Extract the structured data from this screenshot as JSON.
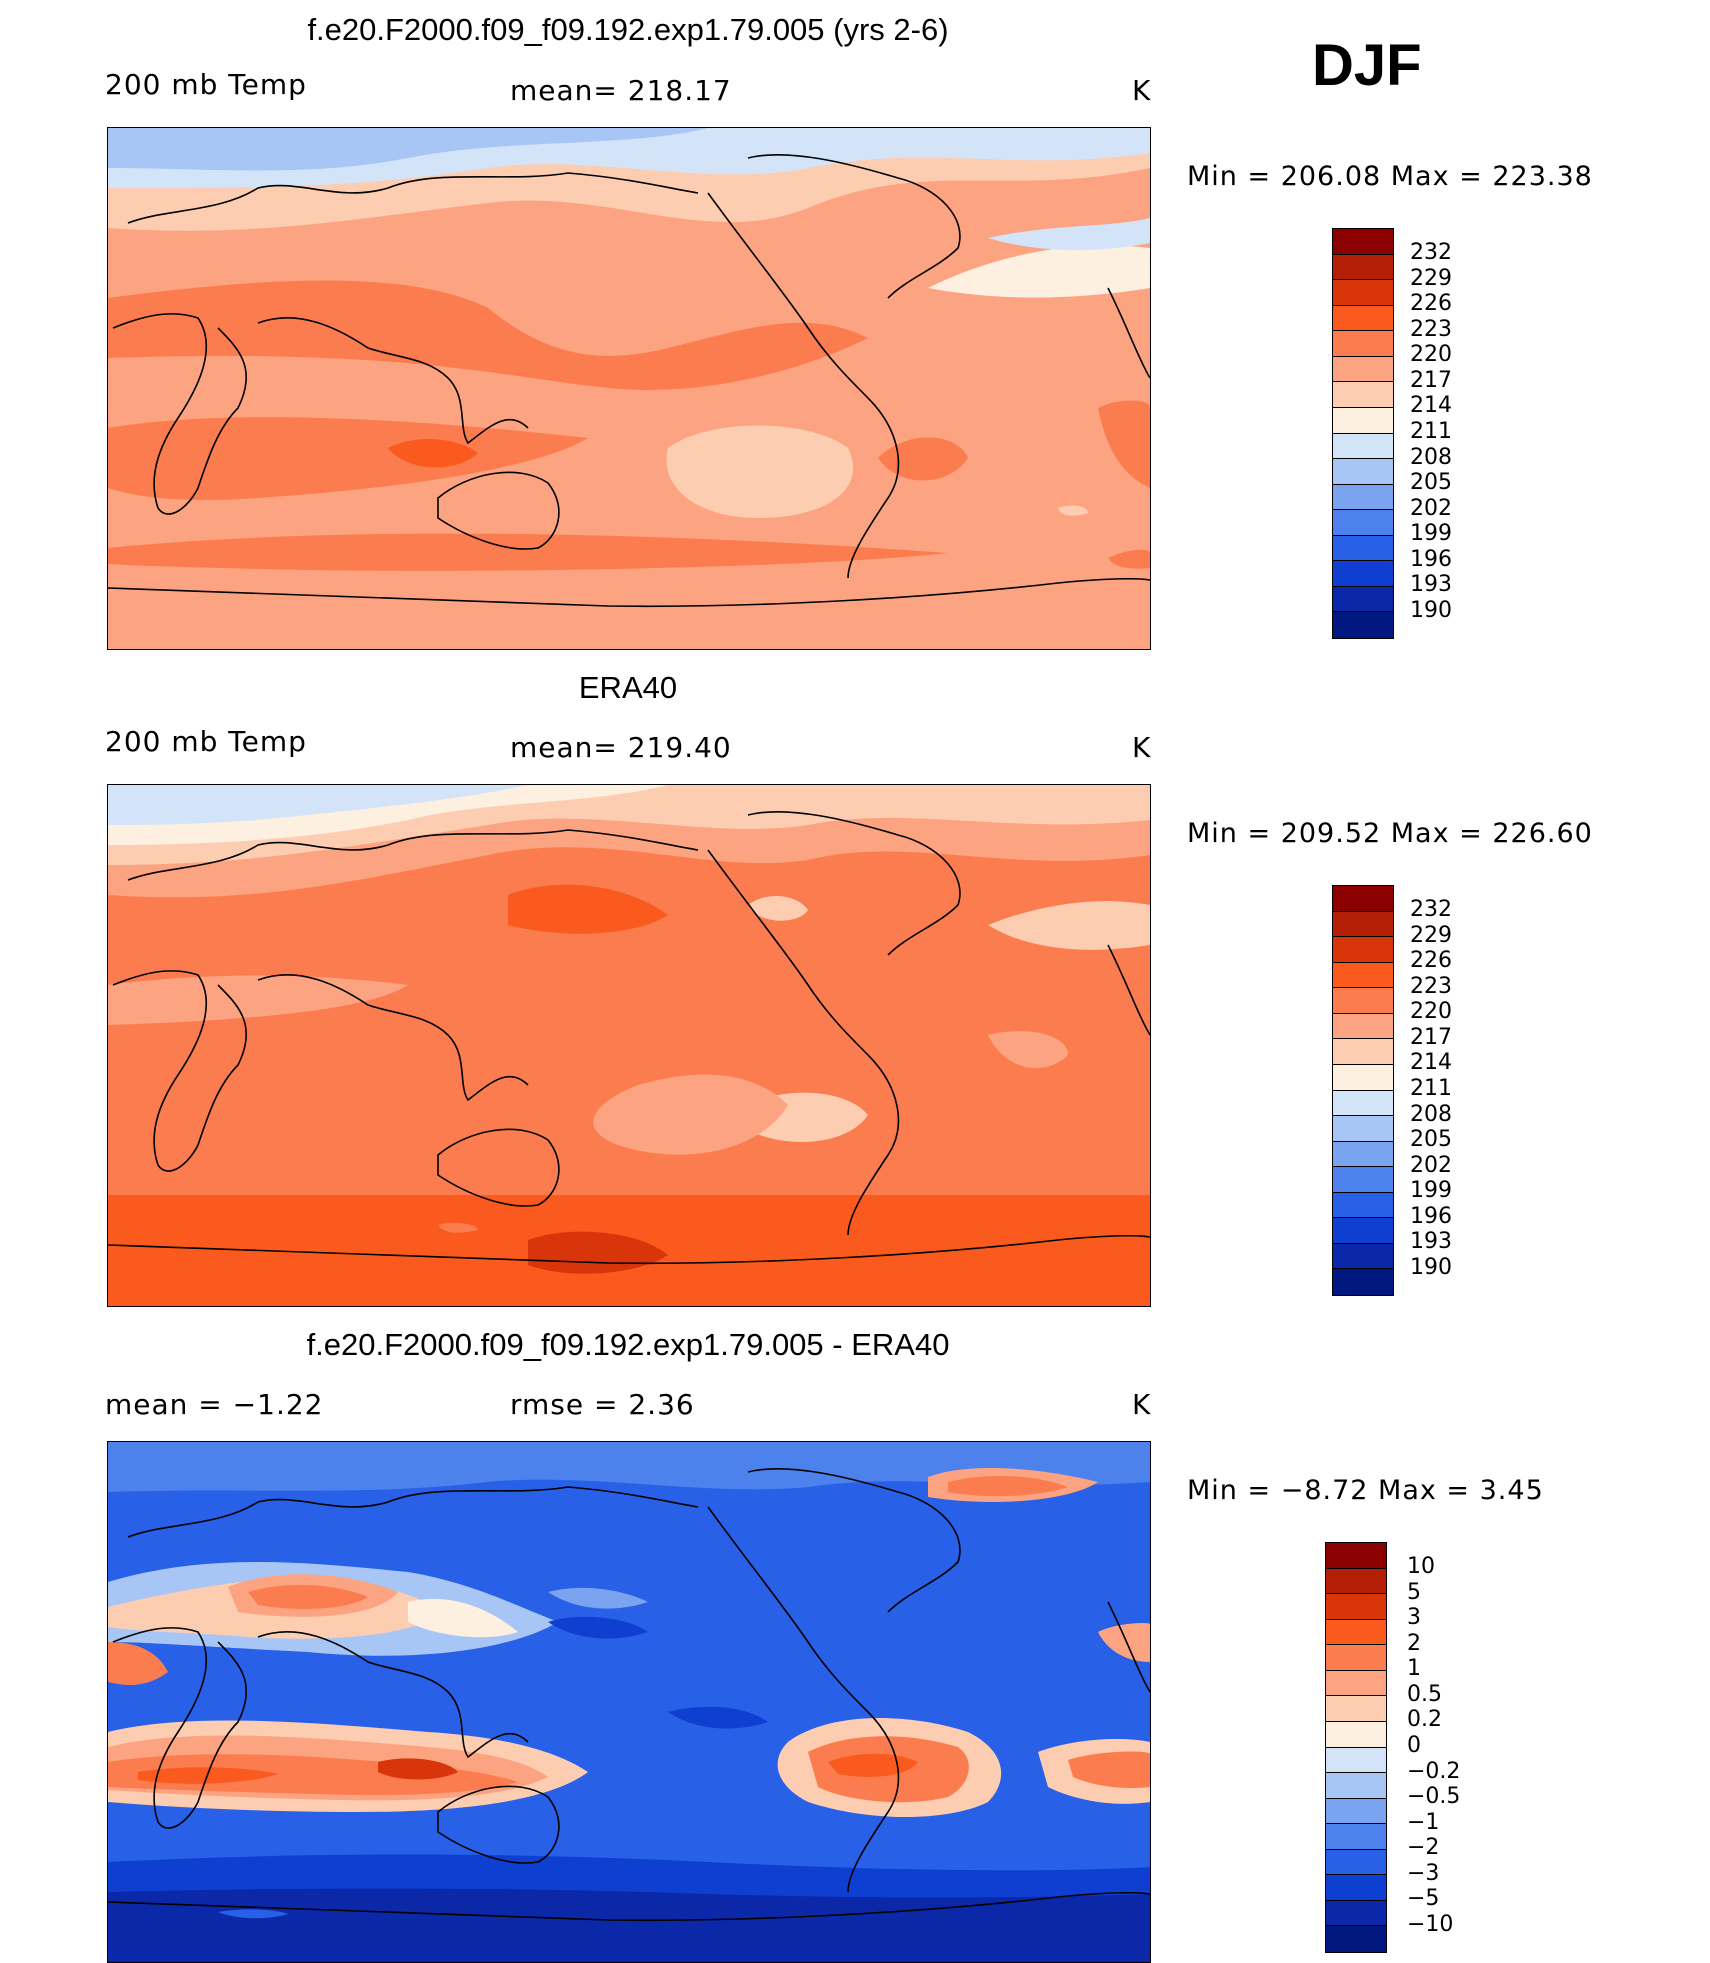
{
  "season": "DJF",
  "panels": [
    {
      "title": "f.e20.F2000.f09_f09.192.exp1.79.005 (yrs 2-6)",
      "left_label": "200 mb Temp",
      "center_label": "mean= 218.17",
      "units": "K",
      "minmax": "Min = 206.08 Max = 223.38",
      "map_name": "model-temperature-map"
    },
    {
      "title": "ERA40",
      "left_label": "200 mb Temp",
      "center_label": "mean= 219.40",
      "units": "K",
      "minmax": "Min = 209.52 Max = 226.60",
      "map_name": "era40-temperature-map"
    },
    {
      "title": "f.e20.F2000.f09_f09.192.exp1.79.005 - ERA40",
      "left_label": "mean =   −1.22",
      "center_label": "rmse =    2.36",
      "units": "K",
      "minmax": "Min =   −8.72 Max =     3.45",
      "map_name": "difference-map"
    }
  ],
  "colorbars": {
    "temperature": {
      "labels": [
        "232",
        "229",
        "226",
        "223",
        "220",
        "217",
        "214",
        "211",
        "208",
        "205",
        "202",
        "199",
        "196",
        "193",
        "190"
      ],
      "colors": [
        "#8b0000",
        "#b41e05",
        "#d8350a",
        "#fa5a1e",
        "#fb7d4f",
        "#fca482",
        "#fdcdb2",
        "#fef0e0",
        "#d4e4f8",
        "#a8c6f5",
        "#7aa4f0",
        "#4d82ec",
        "#2860e8",
        "#0f3fd0",
        "#0a28a8",
        "#001880"
      ]
    },
    "difference": {
      "labels": [
        "10",
        "5",
        "3",
        "2",
        "1",
        "0.5",
        "0.2",
        "0",
        "−0.2",
        "−0.5",
        "−1",
        "−2",
        "−3",
        "−5",
        "−10"
      ],
      "colors": [
        "#8b0000",
        "#b41e05",
        "#d8350a",
        "#fa5a1e",
        "#fb7d4f",
        "#fca482",
        "#fdcdb2",
        "#fef0e0",
        "#d4e4f8",
        "#a8c6f5",
        "#7aa4f0",
        "#4d82ec",
        "#2860e8",
        "#0f3fd0",
        "#0a28a8",
        "#001880"
      ]
    }
  }
}
